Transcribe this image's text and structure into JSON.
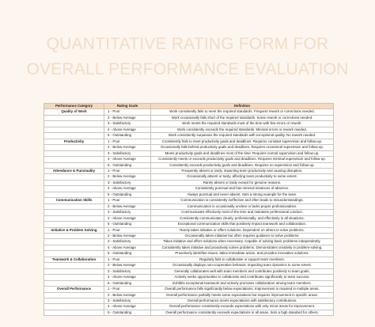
{
  "header": {
    "title_line1": "QUANTITATIVE RATING FORM FOR",
    "title_line2": "OVERALL PERFORMANCE EVALUATION"
  },
  "table": {
    "headers": [
      "Performance Category",
      "Rating Scale",
      "Definition"
    ],
    "sections": [
      {
        "category": "Quality of Work",
        "rows": [
          {
            "rating": "1 - Poor",
            "definition": "Work consistently fails to meet the required standards. Frequent rework or corrections needed."
          },
          {
            "rating": "2 - Below Average",
            "definition": "Work occasionally falls short of the required standards. Some rework or corrections needed."
          },
          {
            "rating": "3 - Satisfactory",
            "definition": "Work meets the required standards most of the time with few errors or rework."
          },
          {
            "rating": "4 - Above Average",
            "definition": "Work consistently exceeds the required standards. Minimal errors or rework needed."
          },
          {
            "rating": "5 - Outstanding",
            "definition": "Work consistently surpasses the required standards with exceptional quality. No rework needed."
          }
        ]
      },
      {
        "category": "Productivity",
        "rows": [
          {
            "rating": "1 - Poor",
            "definition": "Consistently fails to meet productivity goals and deadlines. Requires constant supervision and follow-up."
          },
          {
            "rating": "2 - Below Average",
            "definition": "Occasionally falls behind productivity goals and deadlines. Requires occasional supervision and follow-up."
          },
          {
            "rating": "3 - Satisfactory",
            "definition": "Meets productivity goals and deadlines most of the time. Requires normal supervision and follow-up."
          },
          {
            "rating": "4 - Above Average",
            "definition": "Consistently meets or exceeds productivity goals and deadlines. Requires minimal supervision and follow-up."
          },
          {
            "rating": "5 - Outstanding",
            "definition": "Consistently exceeds productivity goals and deadlines. Requires no supervision and follow-up."
          }
        ]
      },
      {
        "category": "Attendance & Punctuality",
        "rows": [
          {
            "rating": "1 - Poor",
            "definition": "Frequently absent or tardy, impacting team productivity and causing disruption."
          },
          {
            "rating": "2 - Below Average",
            "definition": "Occasionally absent or tardy, affecting team productivity to some extent."
          },
          {
            "rating": "3 - Satisfactory",
            "definition": "Rarely absent or tardy except for genuine reasons."
          },
          {
            "rating": "4 - Above Average",
            "definition": "Consistently punctual and has minimal instances of absence."
          },
          {
            "rating": "5 - Outstanding",
            "definition": "Always punctual and never absent. Sets a strong example for the team."
          }
        ]
      },
      {
        "category": "Communication Skills",
        "rows": [
          {
            "rating": "1 - Poor",
            "definition": "Communication is consistently ineffective and often leads to misunderstandings."
          },
          {
            "rating": "2 - Below Average",
            "definition": "Communication is occasionally unclear or lacks proper professionalism."
          },
          {
            "rating": "3 - Satisfactory",
            "definition": "Communicates effectively most of the time and maintains professional conduct."
          },
          {
            "rating": "4 - Above Average",
            "definition": "Consistently communicates clearly, professionally, and effectively in all situations."
          },
          {
            "rating": "5 - Outstanding",
            "definition": "Exceptional communication skills that positively impact teamwork and collaboration."
          }
        ]
      },
      {
        "category": "Initiative & Problem Solving",
        "rows": [
          {
            "rating": "1 - Poor",
            "definition": "Rarely takes initiative or offers solutions. Dependent on others to solve problems."
          },
          {
            "rating": "2 - Below Average",
            "definition": "Occasionally takes initiative but often requires guidance to solve problems."
          },
          {
            "rating": "3 - Satisfactory",
            "definition": "Takes initiative and offers solutions when necessary. Capable of solving basic problems independently."
          },
          {
            "rating": "4 - Above Average",
            "definition": "Consistently takes initiative and proactively solves problems. Demonstrates creativity in problem-solving."
          },
          {
            "rating": "5 - Outstanding",
            "definition": "Proactively identifies issues, takes immediate action, and provides innovative solutions."
          }
        ]
      },
      {
        "category": "Teamwork & Collaboration",
        "rows": [
          {
            "rating": "1 - Poor",
            "definition": "Regularly fails to collaborate or support team members."
          },
          {
            "rating": "2 - Below Average",
            "definition": "Occasionally displays non-cooperative behavior, impacting team dynamics to some extent."
          },
          {
            "rating": "3 - Satisfactory",
            "definition": "Generally collaborates well with team members and contributes positively to team goals."
          },
          {
            "rating": "4 - Above Average",
            "definition": "Actively seeks opportunities to collaborate and contributes significantly to team success."
          },
          {
            "rating": "5 - Outstanding",
            "definition": "Exhibits exceptional teamwork and actively promotes collaboration among team members."
          }
        ]
      },
      {
        "category": "Overall Performance",
        "rows": [
          {
            "rating": "1 - Poor",
            "definition": "Overall performance falls significantly below expectations. Improvement is required in multiple areas."
          },
          {
            "rating": "2 - Below Average",
            "definition": "Overall performance partially meets some expectations but requires improvement in specific areas."
          },
          {
            "rating": "3 - Satisfactory",
            "definition": "Overall performance meets expectations with satisfactory contributions."
          },
          {
            "rating": "4 - Above Average",
            "definition": "Overall performance consistently exceeds expectations with only minor areas for improvement."
          },
          {
            "rating": "5 - Outstanding",
            "definition": "Overall performance consistently exceeds expectations in all areas. Sets a high standard for others."
          }
        ]
      }
    ]
  }
}
